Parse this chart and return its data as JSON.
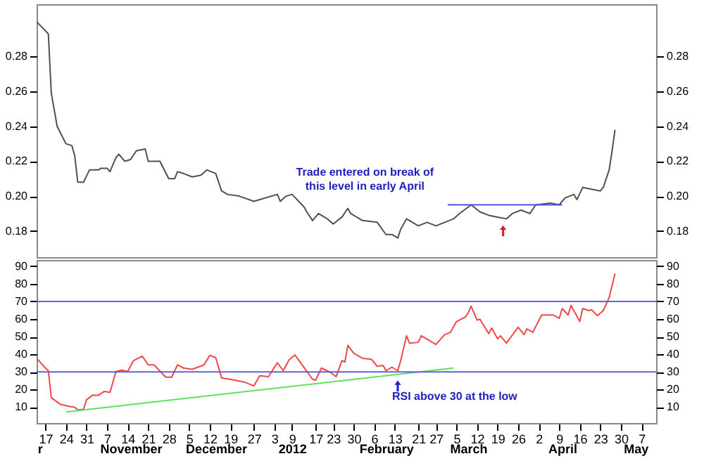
{
  "chart_data": [
    {
      "type": "line",
      "xlim": [
        "2011-10-14",
        "2012-05-12"
      ],
      "ylim": [
        0.165,
        0.31
      ],
      "yticks": [
        0.18,
        {
          "value": 0.2,
          "label": "0.20"
        },
        0.22,
        0.24,
        0.26,
        0.28
      ],
      "y2lim": [
        0.165,
        0.31
      ],
      "y2ticks": [
        0.18,
        {
          "value": 0.2,
          "label": "0.20"
        },
        0.22,
        0.24,
        0.26,
        0.28
      ],
      "tick_labels": "y",
      "grid": false,
      "series": [
        {
          "color": "#505050",
          "x": [
            "2011-10-14",
            "2011-10-18",
            "2011-10-19",
            "2011-10-21",
            "2011-10-24",
            "2011-10-26",
            "2011-10-27",
            "2011-10-28",
            "2011-10-30",
            "2011-11-01",
            "2011-11-04",
            "2011-11-05",
            "2011-11-07",
            "2011-11-08",
            "2011-11-10",
            "2011-11-11",
            "2011-11-13",
            "2011-11-15",
            "2011-11-17",
            "2011-11-20",
            "2011-11-21",
            "2011-11-25",
            "2011-11-28",
            "2011-11-30",
            "2011-12-01",
            "2011-12-03",
            "2011-12-06",
            "2011-12-09",
            "2011-12-11",
            "2011-12-14",
            "2011-12-16",
            "2011-12-18",
            "2011-12-22",
            "2011-12-27",
            "2011-12-29",
            "2012-01-04",
            "2012-01-05",
            "2012-01-07",
            "2012-01-09",
            "2012-01-13",
            "2012-01-14",
            "2012-01-16",
            "2012-01-18",
            "2012-01-21",
            "2012-01-23",
            "2012-01-26",
            "2012-01-28",
            "2012-01-29",
            "2012-02-02",
            "2012-02-07",
            "2012-02-10",
            "2012-02-12",
            "2012-02-14",
            "2012-02-15",
            "2012-02-17",
            "2012-02-21",
            "2012-02-24",
            "2012-02-27",
            "2012-03-01",
            "2012-03-04",
            "2012-03-06",
            "2012-03-10",
            "2012-03-13",
            "2012-03-16",
            "2012-03-19",
            "2012-03-22",
            "2012-03-24",
            "2012-03-27",
            "2012-03-30",
            "2012-04-01",
            "2012-04-06",
            "2012-04-09",
            "2012-04-11",
            "2012-04-14",
            "2012-04-15",
            "2012-04-17",
            "2012-04-20",
            "2012-04-23",
            "2012-04-24",
            "2012-04-26",
            "2012-04-27",
            "2012-04-28"
          ],
          "values": [
            0.3,
            0.293,
            0.259,
            0.24,
            0.23,
            0.229,
            0.223,
            0.208,
            0.208,
            0.215,
            0.215,
            0.216,
            0.216,
            0.214,
            0.222,
            0.224,
            0.22,
            0.221,
            0.226,
            0.227,
            0.22,
            0.22,
            0.21,
            0.21,
            0.214,
            0.213,
            0.211,
            0.212,
            0.215,
            0.213,
            0.203,
            0.201,
            0.2,
            0.197,
            0.198,
            0.201,
            0.197,
            0.2,
            0.201,
            0.194,
            0.191,
            0.186,
            0.19,
            0.187,
            0.184,
            0.188,
            0.193,
            0.19,
            0.186,
            0.185,
            0.178,
            0.178,
            0.176,
            0.181,
            0.187,
            0.183,
            0.185,
            0.183,
            0.185,
            0.187,
            0.19,
            0.195,
            0.191,
            0.189,
            0.188,
            0.187,
            0.19,
            0.192,
            0.19,
            0.195,
            0.196,
            0.195,
            0.199,
            0.201,
            0.198,
            0.205,
            0.204,
            0.203,
            0.205,
            0.215,
            0.226,
            0.238
          ]
        },
        {
          "type": "line",
          "color": "#5050e0",
          "x": [
            "2012-03-02",
            "2012-04-10"
          ],
          "values": [
            0.195,
            0.195
          ]
        }
      ],
      "annotations": [
        "Trade entered on break of\nthis level in early April"
      ]
    },
    {
      "type": "line",
      "xlim": [
        "2011-10-14",
        "2012-05-12"
      ],
      "ylim": [
        1,
        93.5
      ],
      "yticks": [
        10,
        20,
        30,
        40,
        50,
        60,
        70,
        80,
        90
      ],
      "y2lim": [
        1,
        93.5
      ],
      "y2ticks": [
        10,
        20,
        30,
        40,
        50,
        60,
        70,
        80,
        90
      ],
      "grid": false,
      "xticks": [
        {
          "value": "2011-10-17",
          "label": "17"
        },
        {
          "value": "2011-10-24",
          "label": "24"
        },
        {
          "value": "2011-10-31",
          "label": "31"
        },
        {
          "value": "2011-11-07",
          "label": "7"
        },
        {
          "value": "2011-11-14",
          "label": "14"
        },
        {
          "value": "2011-11-21",
          "label": "21"
        },
        {
          "value": "2011-11-28",
          "label": "28"
        },
        {
          "value": "2011-12-05",
          "label": "5"
        },
        {
          "value": "2011-12-12",
          "label": "12"
        },
        {
          "value": "2011-12-19",
          "label": "19"
        },
        {
          "value": "2011-12-27",
          "label": "27"
        },
        {
          "value": "2012-01-03",
          "label": "3"
        },
        {
          "value": "2012-01-09",
          "label": "9"
        },
        {
          "value": "2012-01-17",
          "label": "17"
        },
        {
          "value": "2012-01-23",
          "label": "23"
        },
        {
          "value": "2012-01-30",
          "label": "30"
        },
        {
          "value": "2012-02-06",
          "label": "6"
        },
        {
          "value": "2012-02-13",
          "label": "13"
        },
        {
          "value": "2012-02-21",
          "label": "21"
        },
        {
          "value": "2012-02-27",
          "label": "27"
        },
        {
          "value": "2012-03-05",
          "label": "5"
        },
        {
          "value": "2012-03-12",
          "label": "12"
        },
        {
          "value": "2012-03-19",
          "label": "19"
        },
        {
          "value": "2012-03-26",
          "label": "26"
        },
        {
          "value": "2012-04-02",
          "label": "2"
        },
        {
          "value": "2012-04-09",
          "label": "9"
        },
        {
          "value": "2012-04-16",
          "label": "16"
        },
        {
          "value": "2012-04-23",
          "label": "23"
        },
        {
          "value": "2012-04-30",
          "label": "30"
        },
        {
          "value": "2012-05-07",
          "label": "7"
        }
      ],
      "series": [
        {
          "color": "#f04848",
          "x": [
            "2011-10-14",
            "2011-10-17",
            "2011-10-18",
            "2011-10-19",
            "2011-10-22",
            "2011-10-25",
            "2011-10-27",
            "2011-10-28",
            "2011-10-30",
            "2011-10-31",
            "2011-11-02",
            "2011-11-04",
            "2011-11-06",
            "2011-11-08",
            "2011-11-10",
            "2011-11-12",
            "2011-11-14",
            "2011-11-16",
            "2011-11-19",
            "2011-11-21",
            "2011-11-23",
            "2011-11-27",
            "2011-11-29",
            "2011-12-01",
            "2011-12-03",
            "2011-12-06",
            "2011-12-10",
            "2011-12-12",
            "2011-12-14",
            "2011-12-16",
            "2011-12-19",
            "2011-12-24",
            "2011-12-27",
            "2011-12-29",
            "2012-01-01",
            "2012-01-03",
            "2012-01-04",
            "2012-01-06",
            "2012-01-08",
            "2012-01-10",
            "2012-01-16",
            "2012-01-17",
            "2012-01-19",
            "2012-01-22",
            "2012-01-24",
            "2012-01-26",
            "2012-01-27",
            "2012-01-28",
            "2012-01-30",
            "2012-02-02",
            "2012-02-05",
            "2012-02-07",
            "2012-02-09",
            "2012-02-10",
            "2012-02-12",
            "2012-02-14",
            "2012-02-15",
            "2012-02-17",
            "2012-02-18",
            "2012-02-21",
            "2012-02-22",
            "2012-02-27",
            "2012-03-01",
            "2012-03-03",
            "2012-03-05",
            "2012-03-08",
            "2012-03-09",
            "2012-03-10",
            "2012-03-12",
            "2012-03-13",
            "2012-03-16",
            "2012-03-17",
            "2012-03-19",
            "2012-03-20",
            "2012-03-22",
            "2012-03-26",
            "2012-03-28",
            "2012-03-29",
            "2012-03-31",
            "2012-04-03",
            "2012-04-07",
            "2012-04-09",
            "2012-04-10",
            "2012-04-12",
            "2012-04-13",
            "2012-04-16",
            "2012-04-17",
            "2012-04-19",
            "2012-04-20",
            "2012-04-22",
            "2012-04-24",
            "2012-04-26",
            "2012-04-28"
          ],
          "values": [
            37.7,
            32.2,
            30.7,
            15.4,
            11.7,
            10.5,
            10.0,
            8.5,
            8.8,
            14.2,
            16.7,
            16.7,
            18.9,
            18.4,
            30.2,
            31.0,
            30.2,
            36.4,
            38.9,
            34.0,
            34.0,
            27.0,
            27.0,
            34.0,
            32.2,
            31.5,
            34.0,
            39.4,
            38.1,
            26.5,
            25.8,
            24.1,
            22.1,
            27.8,
            27.3,
            32.7,
            35.2,
            30.7,
            36.9,
            39.6,
            25.8,
            25.3,
            32.2,
            29.8,
            27.3,
            36.4,
            35.7,
            45.1,
            40.6,
            37.7,
            37.2,
            33.2,
            33.7,
            30.7,
            32.7,
            30.7,
            36.4,
            50.5,
            46.3,
            46.8,
            50.5,
            45.6,
            51.2,
            52.5,
            58.6,
            61.1,
            63.6,
            67.3,
            59.4,
            59.9,
            51.7,
            54.9,
            48.8,
            50.5,
            46.3,
            55.4,
            51.2,
            54.4,
            52.5,
            62.3,
            62.3,
            60.4,
            66.0,
            62.3,
            67.8,
            58.6,
            66.0,
            64.8,
            65.3,
            61.9,
            64.8,
            72.2,
            85.8
          ]
        },
        {
          "type": "line",
          "color": "#60e060",
          "x": [
            "2011-10-24",
            "2012-03-04"
          ],
          "values": [
            7.3,
            32.2
          ]
        }
      ],
      "ref_lines": [
        {
          "axis": "y",
          "value": 70,
          "color": "#6060e0"
        },
        {
          "axis": "y",
          "value": 30,
          "color": "#6060e0"
        }
      ],
      "x2lim": [
        "2011-10-14",
        "2012-05-12"
      ],
      "x2ticks": [
        {
          "value": "2011-10-15",
          "label": "r"
        },
        {
          "value": "2011-11-15",
          "label": "November"
        },
        {
          "value": "2011-12-14",
          "label": "December"
        },
        {
          "value": "2012-01-09",
          "label": "2012"
        },
        {
          "value": "2012-02-10",
          "label": "February"
        },
        {
          "value": "2012-03-09",
          "label": "March"
        },
        {
          "value": "2012-04-10",
          "label": "April"
        },
        {
          "value": "2012-05-05",
          "label": "May"
        }
      ],
      "annotations": [
        {
          "text": "RSI above 30 at the low",
          "x": "2012-02-14",
          "y": 26
        }
      ]
    }
  ]
}
